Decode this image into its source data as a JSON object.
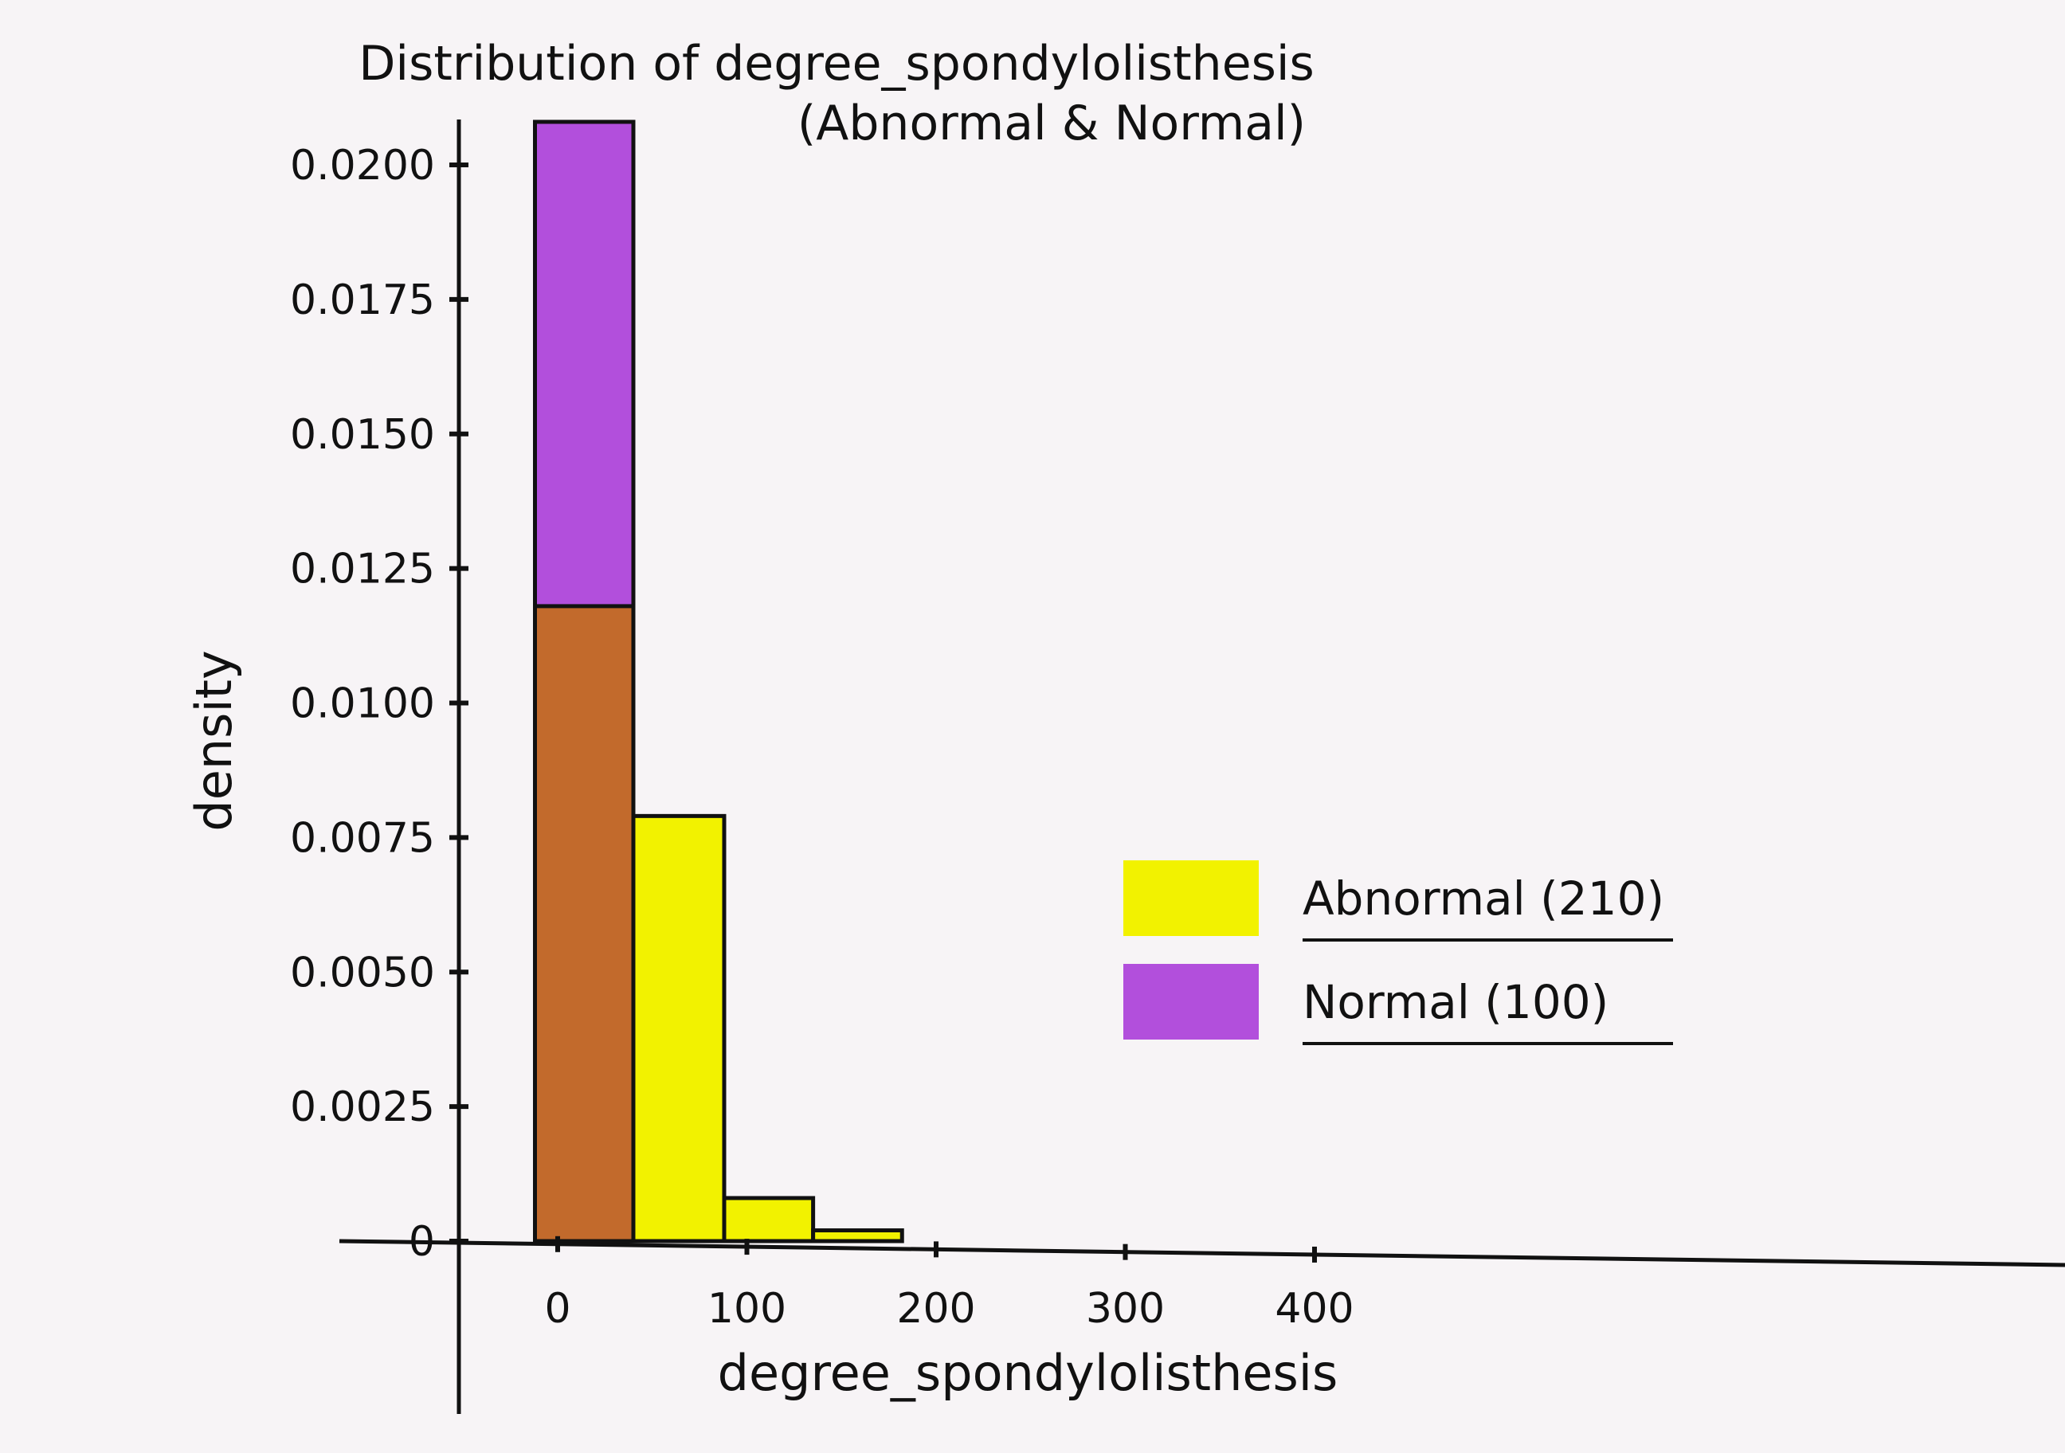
{
  "chart_data": {
    "type": "bar",
    "title": "Distribution of degree_spondylolisthesis",
    "subtitle": "(Abnormal & Normal)",
    "xlabel": "degree_spondylolisthesis",
    "ylabel": "density",
    "xlim": [
      -15,
      420
    ],
    "ylim": [
      0,
      0.021
    ],
    "x_ticks": [
      0,
      100,
      200,
      300,
      400
    ],
    "x_tick_labels": [
      "0",
      "100",
      "200",
      "300",
      "400"
    ],
    "y_ticks": [
      0,
      0.0025,
      0.005,
      0.0075,
      0.01,
      0.0125,
      0.015,
      0.0175,
      0.02
    ],
    "y_tick_labels": [
      "0",
      "0.0025",
      "0.0050",
      "0.0075",
      "0.0100",
      "0.0125",
      "0.0150",
      "0.0175",
      "0.0200"
    ],
    "series": [
      {
        "name": "Abnormal (210)",
        "color": "#f2f200",
        "bins": [
          {
            "x0": -12,
            "x1": 40,
            "value": 0.0102
          },
          {
            "x0": 40,
            "x1": 88,
            "value": 0.0079
          },
          {
            "x0": 88,
            "x1": 135,
            "value": 0.0008
          },
          {
            "x0": 135,
            "x1": 182,
            "value": 0.0002
          }
        ]
      },
      {
        "name": "Normal (100)",
        "color": "#b24fdc",
        "bins": [
          {
            "x0": -12,
            "x1": 40,
            "value": 0.0208
          }
        ]
      }
    ],
    "overlap_color": "#c26a2c",
    "outline_color": "#111111",
    "legend": {
      "position": "center-right",
      "entries": [
        "Abnormal (210)",
        "Normal (100)"
      ]
    },
    "grid": false
  }
}
